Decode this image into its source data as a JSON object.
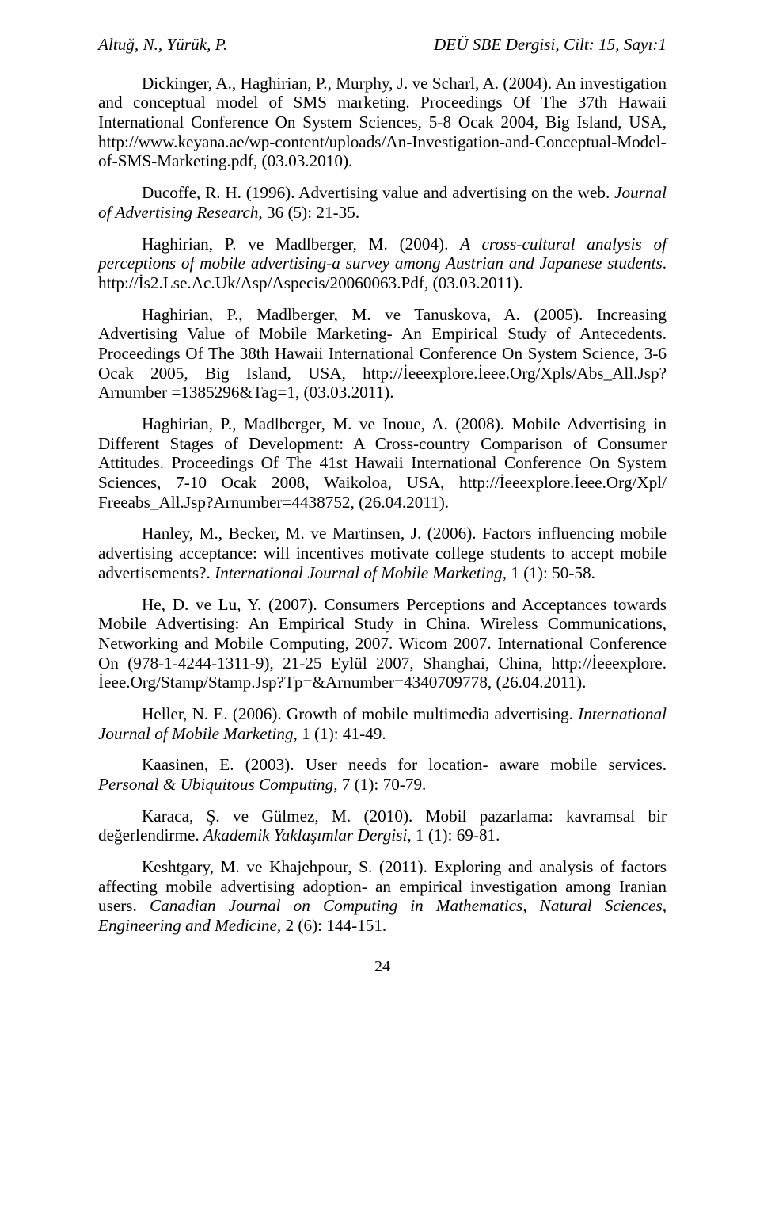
{
  "runningHead": {
    "left": "Altuğ, N., Yürük, P.",
    "right": "DEÜ SBE Dergisi, Cilt: 15, Sayı:1"
  },
  "refs": [
    {
      "parts": [
        {
          "t": "Dickinger, A., Haghirian, P., Murphy, J. ve Scharl, A. (2004). An investigation and conceptual model of SMS marketing. Proceedings Of The 37th Hawaii International Conference On System Sciences, 5-8 Ocak 2004, Big Island, USA, http://www.keyana.ae/wp-content/uploads/An-Investigation-and-Conceptual-Model-of-SMS-Marketing.pdf, (03.03.2010)."
        }
      ]
    },
    {
      "parts": [
        {
          "t": "Ducoffe, R. H. (1996). Advertising value and advertising on the web. "
        },
        {
          "t": "Journal of Advertising Research",
          "i": true
        },
        {
          "t": ", 36 (5): 21-35."
        }
      ]
    },
    {
      "parts": [
        {
          "t": "Haghirian, P. ve Madlberger, M. (2004). "
        },
        {
          "t": "A cross-cultural analysis of perceptions of mobile advertising-a survey among Austrian and Japanese students",
          "i": true
        },
        {
          "t": ". http://İs2.Lse.Ac.Uk/Asp/Aspecis/20060063.Pdf, (03.03.2011)."
        }
      ]
    },
    {
      "parts": [
        {
          "t": "Haghirian, P., Madlberger, M. ve Tanuskova, A. (2005). Increasing Advertising Value of Mobile Marketing- An Empirical Study of Antecedents. Proceedings Of The 38th Hawaii International Conference On System Science, 3-6 Ocak 2005, Big Island, USA, http://İeeexplore.İeee.Org/Xpls/Abs_All.Jsp?Arnumber =1385296&Tag=1, (03.03.2011)."
        }
      ]
    },
    {
      "parts": [
        {
          "t": "Haghirian, P., Madlberger, M. ve Inoue, A. (2008). Mobile Advertising in Different Stages of Development: A Cross-country Comparison of Consumer Attitudes. Proceedings Of The 41st Hawaii International Conference On System Sciences, 7-10 Ocak 2008, Waikoloa, USA, http://İeeexplore.İeee.Org/Xpl/ Freeabs_All.Jsp?Arnumber=4438752, (26.04.2011)."
        }
      ]
    },
    {
      "parts": [
        {
          "t": "Hanley, M., Becker, M. ve Martinsen, J. (2006). Factors influencing mobile advertising acceptance: will incentives motivate college students to accept mobile advertisements?. "
        },
        {
          "t": "International Journal of Mobile Marketing,",
          "i": true
        },
        {
          "t": " 1 (1): 50-58."
        }
      ]
    },
    {
      "parts": [
        {
          "t": "He, D. ve Lu, Y. (2007). Consumers Perceptions and Acceptances towards Mobile Advertising: An Empirical Study in China. Wireless Communications, Networking and Mobile Computing, 2007. Wicom 2007. International Conference On (978-1-4244-1311-9), 21-25 Eylül 2007, Shanghai, China,  http://İeeexplore. İeee.Org/Stamp/Stamp.Jsp?Tp=&Arnumber=4340709778, (26.04.2011)."
        }
      ]
    },
    {
      "parts": [
        {
          "t": "Heller, N. E. (2006). Growth of mobile multimedia advertising. "
        },
        {
          "t": "International Journal of Mobile Marketing,",
          "i": true
        },
        {
          "t": " 1 (1): 41-49."
        }
      ]
    },
    {
      "parts": [
        {
          "t": "Kaasinen, E. (2003). User needs for location- aware mobile services. "
        },
        {
          "t": "Personal & Ubiquitous Computing,",
          "i": true
        },
        {
          "t": " 7 (1): 70-79."
        }
      ]
    },
    {
      "parts": [
        {
          "t": "Karaca, Ş. ve Gülmez, M. (2010). Mobil pazarlama: kavramsal bir değerlendirme. "
        },
        {
          "t": "Akademik Yaklaşımlar Dergisi,",
          "i": true
        },
        {
          "t": " 1 (1): 69-81."
        }
      ]
    },
    {
      "parts": [
        {
          "t": "Keshtgary, M. ve Khajehpour, S. (2011). Exploring and analysis of factors affecting mobile advertising adoption- an empirical investigation among Iranian users. "
        },
        {
          "t": "Canadian Journal on Computing in Mathematics, Natural Sciences, Engineering and Medicine,",
          "i": true
        },
        {
          "t": " 2 (6): 144-151."
        }
      ]
    }
  ],
  "pageNumber": "24"
}
